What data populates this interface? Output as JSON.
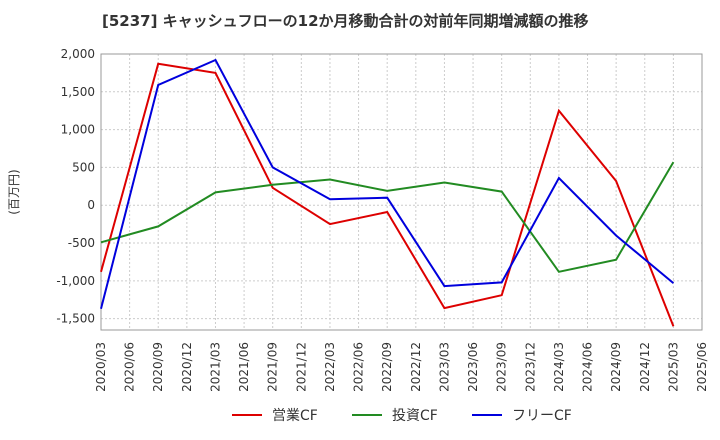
{
  "chart_data": {
    "type": "line",
    "title": "[5237]  キャッシュフローの12か月移動合計の対前年同期増減額の推移",
    "ylabel": "(百万円)",
    "xlabel": "",
    "ylim": [
      -1650,
      2000
    ],
    "yticks": [
      2000,
      1500,
      1000,
      500,
      0,
      -500,
      -1000,
      -1500
    ],
    "ytick_labels": [
      "2,000",
      "1,500",
      "1,000",
      "500",
      "0",
      "-500",
      "-1,000",
      "-1,500"
    ],
    "categories": [
      "2020/03",
      "2020/06",
      "2020/09",
      "2020/12",
      "2021/03",
      "2021/06",
      "2021/09",
      "2021/12",
      "2022/03",
      "2022/06",
      "2022/09",
      "2022/12",
      "2023/03",
      "2023/06",
      "2023/09",
      "2023/12",
      "2024/03",
      "2024/06",
      "2024/09",
      "2024/12",
      "2025/03",
      "2025/06"
    ],
    "grid": true,
    "legend_position": "bottom",
    "series": [
      {
        "name": "営業CF",
        "color": "#dd0000",
        "values": [
          -880,
          null,
          1870,
          null,
          1750,
          null,
          230,
          null,
          -250,
          null,
          -90,
          null,
          -1360,
          null,
          -1190,
          null,
          1250,
          null,
          320,
          null,
          -1600,
          null
        ]
      },
      {
        "name": "投資CF",
        "color": "#228b22",
        "values": [
          -490,
          null,
          -280,
          null,
          170,
          null,
          270,
          null,
          340,
          null,
          190,
          null,
          300,
          null,
          180,
          null,
          -880,
          null,
          -720,
          null,
          570,
          null
        ]
      },
      {
        "name": "フリーCF",
        "color": "#0000dd",
        "values": [
          -1370,
          null,
          1590,
          null,
          1920,
          null,
          500,
          null,
          80,
          null,
          100,
          null,
          -1070,
          null,
          -1020,
          null,
          360,
          null,
          -400,
          null,
          -1030,
          null
        ]
      }
    ]
  }
}
